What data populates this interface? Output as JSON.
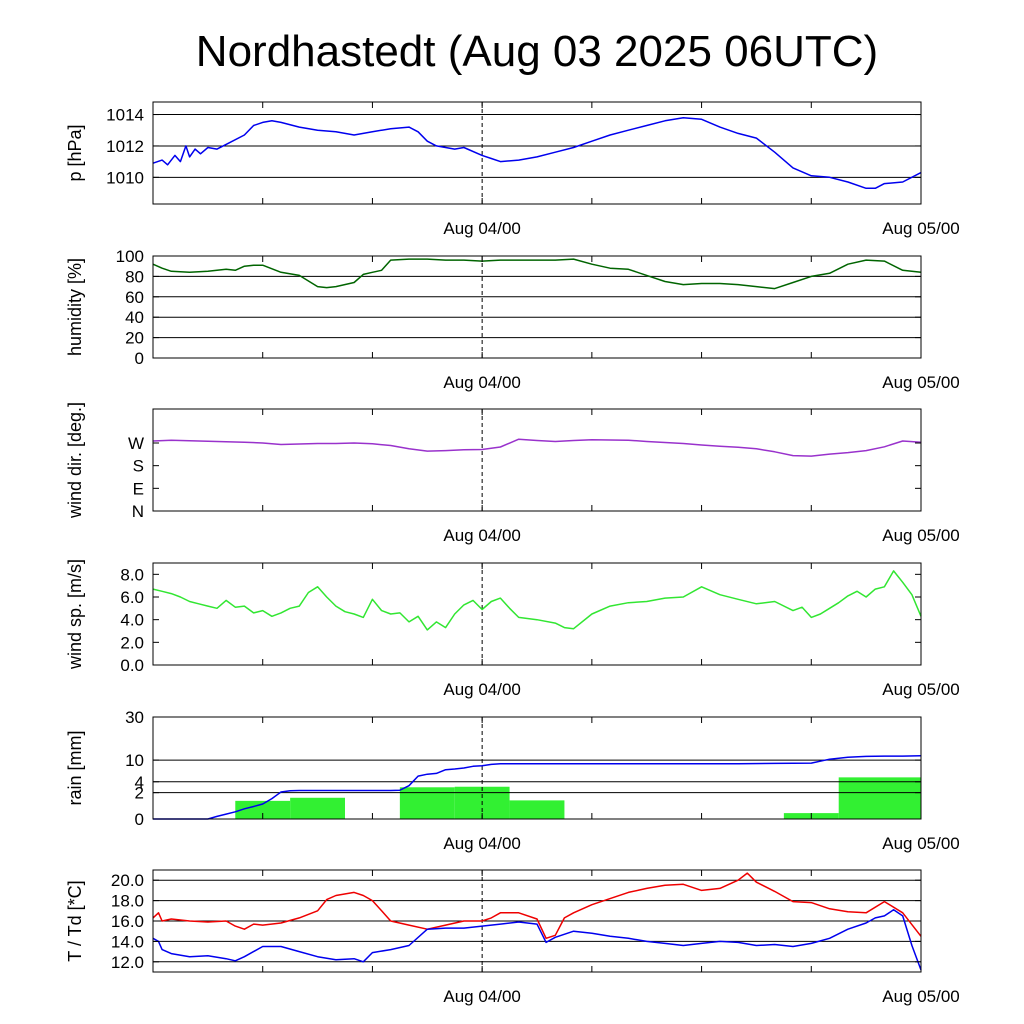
{
  "title": "Nordhastedt (Aug 03 2025 06UTC)",
  "chart_data": [
    {
      "id": "pressure",
      "type": "line",
      "ylabel": "p [hPa]",
      "ylim": [
        1008.3,
        1014.8
      ],
      "yticks": [
        1010,
        1012,
        1014
      ],
      "ytick_labels": [
        "1010",
        "1012",
        "1014"
      ],
      "grid": true,
      "xrange_hours": [
        0,
        42
      ],
      "xtick_labels": [
        {
          "hour": 18,
          "label": "Aug 04/00"
        },
        {
          "hour": 42,
          "label": "Aug 05/00"
        }
      ],
      "series": [
        {
          "color": "#0000ee",
          "x": [
            0,
            0.5,
            0.8,
            1.2,
            1.5,
            1.8,
            2,
            2.3,
            2.6,
            3,
            3.5,
            4,
            5,
            5.5,
            6,
            6.5,
            7,
            8,
            9,
            10,
            11,
            12,
            13,
            14,
            14.5,
            15,
            15.5,
            16,
            16.5,
            17,
            18,
            18.5,
            19,
            20,
            21,
            22,
            23,
            24,
            25,
            26,
            27,
            28,
            29,
            30,
            31,
            32,
            33,
            34,
            35,
            36,
            37,
            38,
            39,
            39.5,
            40,
            41,
            42
          ],
          "y": [
            1010.9,
            1011.1,
            1010.8,
            1011.4,
            1011.0,
            1012.0,
            1011.3,
            1011.8,
            1011.5,
            1011.9,
            1011.8,
            1012.1,
            1012.7,
            1013.3,
            1013.5,
            1013.6,
            1013.5,
            1013.2,
            1013.0,
            1012.9,
            1012.7,
            1012.9,
            1013.1,
            1013.2,
            1012.9,
            1012.3,
            1012.0,
            1011.9,
            1011.8,
            1011.9,
            1011.4,
            1011.2,
            1011.0,
            1011.1,
            1011.3,
            1011.6,
            1011.9,
            1012.3,
            1012.7,
            1013.0,
            1013.3,
            1013.6,
            1013.8,
            1013.7,
            1013.2,
            1012.8,
            1012.5,
            1011.6,
            1010.6,
            1010.1,
            1010.0,
            1009.7,
            1009.3,
            1009.3,
            1009.6,
            1009.7,
            1010.3
          ]
        }
      ]
    },
    {
      "id": "humidity",
      "type": "line",
      "ylabel": "humidity [%]",
      "ylim": [
        0,
        100
      ],
      "yticks": [
        0,
        20,
        40,
        60,
        80,
        100
      ],
      "ytick_labels": [
        "0",
        "20",
        "40",
        "60",
        "80",
        "100"
      ],
      "grid": true,
      "xrange_hours": [
        0,
        42
      ],
      "xtick_labels": [
        {
          "hour": 18,
          "label": "Aug 04/00"
        },
        {
          "hour": 42,
          "label": "Aug 05/00"
        }
      ],
      "series": [
        {
          "color": "#006400",
          "x": [
            0,
            0.5,
            1,
            2,
            3,
            4,
            4.5,
            5,
            5.5,
            6,
            7,
            8,
            9,
            9.5,
            10,
            11,
            11.5,
            12,
            12.5,
            13,
            14,
            15,
            16,
            17,
            18,
            19,
            20,
            21,
            22,
            23,
            24,
            25,
            26,
            27,
            28,
            29,
            30,
            31,
            32,
            33,
            34,
            35,
            36,
            37,
            38,
            39,
            40,
            41,
            42
          ],
          "y": [
            92,
            88,
            85,
            84,
            85,
            87,
            86,
            90,
            91,
            91,
            84,
            81,
            70,
            69,
            70,
            74,
            82,
            84,
            86,
            96,
            97,
            97,
            96,
            96,
            95,
            96,
            96,
            96,
            96,
            97,
            92,
            88,
            87,
            81,
            75,
            72,
            73,
            73,
            72,
            70,
            68,
            74,
            80,
            83,
            92,
            96,
            95,
            86,
            84
          ]
        }
      ]
    },
    {
      "id": "wind_direction",
      "type": "line",
      "ylabel": "wind dir. [deg.]",
      "ylim": [
        0,
        405
      ],
      "yticks": [
        0,
        90,
        180,
        270
      ],
      "ytick_labels": [
        "N",
        "E",
        "S",
        "W"
      ],
      "grid": false,
      "xrange_hours": [
        0,
        42
      ],
      "xtick_labels": [
        {
          "hour": 18,
          "label": "Aug 04/00"
        },
        {
          "hour": 42,
          "label": "Aug 05/00"
        }
      ],
      "series": [
        {
          "color": "#9932cc",
          "x": [
            0,
            1,
            2,
            3,
            4,
            5,
            6,
            7,
            8,
            9,
            10,
            11,
            12,
            13,
            14,
            15,
            16,
            17,
            18,
            19,
            20,
            21,
            22,
            23,
            24,
            25,
            26,
            27,
            28,
            29,
            30,
            31,
            32,
            33,
            34,
            35,
            36,
            37,
            38,
            39,
            40,
            41,
            42
          ],
          "y": [
            278,
            281,
            279,
            277,
            275,
            273,
            270,
            264,
            266,
            268,
            268,
            270,
            267,
            260,
            247,
            238,
            240,
            243,
            244,
            254,
            285,
            280,
            276,
            280,
            283,
            282,
            281,
            276,
            272,
            268,
            262,
            257,
            253,
            247,
            235,
            220,
            218,
            226,
            232,
            240,
            255,
            278,
            273
          ]
        }
      ]
    },
    {
      "id": "wind_speed",
      "type": "line",
      "ylabel": "wind sp. [m/s]",
      "ylim": [
        0,
        9.0
      ],
      "yticks": [
        0,
        2,
        4,
        6,
        8
      ],
      "ytick_labels": [
        "0.0",
        "2.0",
        "4.0",
        "6.0",
        "8.0"
      ],
      "grid": false,
      "xrange_hours": [
        0,
        42
      ],
      "xtick_labels": [
        {
          "hour": 18,
          "label": "Aug 04/00"
        },
        {
          "hour": 42,
          "label": "Aug 05/00"
        }
      ],
      "series": [
        {
          "color": "#32e632",
          "x": [
            0,
            0.5,
            1,
            1.5,
            2,
            2.5,
            3,
            3.5,
            4,
            4.5,
            5,
            5.5,
            6,
            6.5,
            7,
            7.5,
            8,
            8.5,
            9,
            9.5,
            10,
            10.5,
            11,
            11.5,
            12,
            12.5,
            13,
            13.5,
            14,
            14.5,
            15,
            15.5,
            16,
            16.5,
            17,
            17.5,
            18,
            18.5,
            19,
            19.5,
            20,
            21,
            22,
            22.5,
            23,
            24,
            25,
            26,
            27,
            28,
            29,
            30,
            31,
            32,
            33,
            34,
            35,
            35.5,
            36,
            36.5,
            37,
            37.5,
            38,
            38.5,
            39,
            39.5,
            40,
            40.5,
            41,
            41.5,
            42
          ],
          "y": [
            6.7,
            6.5,
            6.3,
            6.0,
            5.6,
            5.4,
            5.2,
            5.0,
            5.7,
            5.1,
            5.2,
            4.6,
            4.8,
            4.3,
            4.6,
            5.0,
            5.2,
            6.4,
            6.9,
            6.0,
            5.2,
            4.7,
            4.5,
            4.2,
            5.8,
            4.8,
            4.5,
            4.6,
            3.8,
            4.3,
            3.1,
            3.8,
            3.3,
            4.5,
            5.3,
            5.7,
            4.9,
            5.6,
            5.9,
            5.0,
            4.2,
            4.0,
            3.7,
            3.3,
            3.2,
            4.5,
            5.2,
            5.5,
            5.6,
            5.9,
            6.0,
            6.9,
            6.2,
            5.8,
            5.4,
            5.6,
            4.8,
            5.1,
            4.2,
            4.5,
            5.0,
            5.5,
            6.1,
            6.5,
            6.0,
            6.7,
            6.9,
            8.3,
            7.3,
            6.2,
            4.3
          ]
        }
      ]
    },
    {
      "id": "rain",
      "type": "bar",
      "ylabel": "rain [mm]",
      "yscale": "sqrt",
      "ylim": [
        0,
        30
      ],
      "yticks": [
        0,
        2,
        4,
        10,
        30
      ],
      "ytick_labels": [
        "0",
        "2",
        "4",
        "10",
        "30"
      ],
      "grid": true,
      "xrange_hours": [
        0,
        42
      ],
      "xtick_labels": [
        {
          "hour": 18,
          "label": "Aug 04/00"
        },
        {
          "hour": 42,
          "label": "Aug 05/00"
        }
      ],
      "bars": {
        "color": "#32f032",
        "x0": [
          4.5,
          7.5,
          13.5,
          16.5,
          19.5,
          34.5,
          37.5
        ],
        "x1": [
          7.5,
          10.5,
          16.5,
          19.5,
          22.5,
          37.5,
          42
        ],
        "values": [
          0.95,
          1.3,
          2.9,
          3.0,
          1.0,
          0.1,
          5.0
        ]
      },
      "series": [
        {
          "color": "#0000ee",
          "x": [
            0,
            2,
            3,
            3.5,
            4,
            4.5,
            5,
            5.5,
            6,
            6.5,
            6.8,
            7,
            7.5,
            8,
            9,
            10,
            11,
            12,
            13,
            13.5,
            14,
            14.5,
            15,
            15.5,
            16,
            16.5,
            17,
            17.5,
            18,
            18.5,
            19,
            20,
            21,
            22,
            24,
            26,
            28,
            30,
            32,
            34,
            36,
            37,
            38,
            39,
            40,
            41,
            42
          ],
          "y": [
            0,
            0,
            0,
            0.02,
            0.07,
            0.15,
            0.3,
            0.45,
            0.65,
            1.2,
            1.7,
            2.1,
            2.3,
            2.35,
            2.35,
            2.35,
            2.35,
            2.35,
            2.35,
            2.4,
            3.2,
            5.3,
            5.8,
            6.0,
            7.0,
            7.2,
            7.5,
            8.0,
            8.2,
            8.6,
            8.8,
            8.8,
            8.8,
            8.8,
            8.8,
            8.8,
            8.8,
            8.8,
            8.8,
            8.9,
            9.0,
            10.3,
            11.0,
            11.3,
            11.4,
            11.4,
            11.5
          ]
        }
      ]
    },
    {
      "id": "temperature",
      "type": "line",
      "ylabel": "T / Td [*C]",
      "ylim": [
        11.0,
        21.0
      ],
      "yticks": [
        12,
        14,
        16,
        18,
        20
      ],
      "ytick_labels": [
        "12.0",
        "14.0",
        "16.0",
        "18.0",
        "20.0"
      ],
      "grid": true,
      "xrange_hours": [
        0,
        42
      ],
      "xtick_labels": [
        {
          "hour": 18,
          "label": "Aug 04/00"
        },
        {
          "hour": 42,
          "label": "Aug 05/00"
        }
      ],
      "series": [
        {
          "color": "#ee0000",
          "x": [
            0,
            0.3,
            0.5,
            1,
            2,
            3,
            4,
            4.5,
            5,
            5.5,
            6,
            7,
            8,
            9,
            9.5,
            10,
            11,
            11.5,
            12,
            12.5,
            13,
            14,
            15,
            16,
            17,
            18,
            18.5,
            19,
            20,
            21,
            21.5,
            22,
            22.5,
            23,
            24,
            25,
            26,
            27,
            28,
            29,
            30,
            31,
            31.5,
            32,
            32.5,
            33,
            34,
            35,
            36,
            37,
            38,
            39,
            40,
            41,
            42
          ],
          "y": [
            16.3,
            16.8,
            16.0,
            16.2,
            16.0,
            15.9,
            16.0,
            15.5,
            15.2,
            15.7,
            15.6,
            15.8,
            16.3,
            17.0,
            18.1,
            18.5,
            18.8,
            18.5,
            18.0,
            17.0,
            16.0,
            15.6,
            15.2,
            15.6,
            16.0,
            16.0,
            16.3,
            16.8,
            16.8,
            16.2,
            14.3,
            14.6,
            16.3,
            16.8,
            17.6,
            18.2,
            18.8,
            19.2,
            19.5,
            19.6,
            19.0,
            19.2,
            19.6,
            20.0,
            20.7,
            19.8,
            18.9,
            17.9,
            17.8,
            17.2,
            16.9,
            16.8,
            17.9,
            16.8,
            14.5
          ]
        },
        {
          "color": "#0000ee",
          "x": [
            0,
            0.3,
            0.5,
            1,
            2,
            3,
            4,
            4.5,
            5,
            6,
            7,
            8,
            9,
            10,
            11,
            11.5,
            12,
            13,
            14,
            15,
            16,
            17,
            18,
            19,
            20,
            21,
            21.5,
            22,
            23,
            24,
            25,
            26,
            27,
            28,
            29,
            30,
            31,
            32,
            33,
            34,
            35,
            36,
            37,
            38,
            39,
            39.5,
            40,
            40.5,
            41,
            41.5,
            42
          ],
          "y": [
            14.3,
            14.0,
            13.2,
            12.8,
            12.5,
            12.6,
            12.3,
            12.1,
            12.5,
            13.5,
            13.5,
            13.0,
            12.5,
            12.2,
            12.3,
            12.0,
            12.9,
            13.2,
            13.6,
            15.2,
            15.3,
            15.3,
            15.5,
            15.7,
            15.9,
            15.7,
            13.9,
            14.4,
            15.0,
            14.8,
            14.5,
            14.3,
            14.0,
            13.8,
            13.6,
            13.8,
            14.0,
            13.9,
            13.6,
            13.7,
            13.5,
            13.8,
            14.3,
            15.2,
            15.8,
            16.3,
            16.5,
            17.1,
            16.5,
            13.6,
            11.2
          ]
        }
      ]
    }
  ]
}
